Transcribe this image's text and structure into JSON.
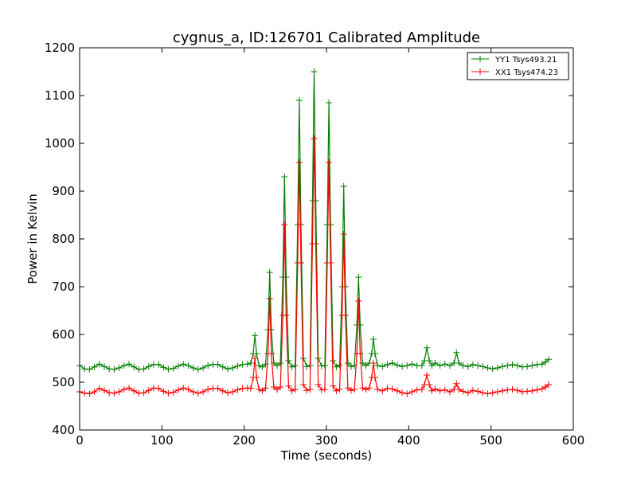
{
  "chart_data": {
    "type": "line",
    "title": "cygnus_a, ID:126701 Calibrated Amplitude",
    "xlabel": "Time (seconds)",
    "ylabel": "Power in Kelvin",
    "xlim": [
      0,
      600
    ],
    "ylim": [
      400,
      1200
    ],
    "xticks": [
      "0",
      "100",
      "200",
      "300",
      "400",
      "500",
      "600"
    ],
    "yticks": [
      "400",
      "500",
      "600",
      "700",
      "800",
      "900",
      "1000",
      "1100",
      "1200"
    ],
    "grid": false,
    "legend_position": "top-right",
    "series": [
      {
        "name": "YY1 Tsys493.21",
        "color": "#008000",
        "marker": "plus",
        "x": [
          0,
          6,
          12,
          18,
          24,
          30,
          36,
          42,
          48,
          54,
          60,
          66,
          72,
          78,
          84,
          90,
          96,
          102,
          108,
          114,
          120,
          126,
          132,
          138,
          144,
          150,
          156,
          162,
          168,
          174,
          180,
          186,
          192,
          198,
          204,
          208,
          211,
          213,
          215,
          218,
          222,
          226,
          229,
          231,
          233,
          236,
          240,
          244,
          247,
          249,
          251,
          254,
          258,
          262,
          265,
          267,
          269,
          272,
          276,
          280,
          283,
          285,
          287,
          290,
          294,
          298,
          301,
          303,
          305,
          308,
          312,
          316,
          319,
          321,
          323,
          326,
          330,
          334,
          337,
          339,
          341,
          344,
          348,
          352,
          355,
          357,
          359,
          362,
          368,
          374,
          380,
          386,
          392,
          398,
          404,
          410,
          416,
          419,
          422,
          425,
          428,
          432,
          438,
          444,
          450,
          455,
          458,
          461,
          466,
          472,
          478,
          484,
          490,
          496,
          502,
          508,
          514,
          520,
          526,
          532,
          538,
          544,
          550,
          556,
          562,
          566,
          570
        ],
        "values": [
          535,
          528,
          527,
          532,
          538,
          533,
          528,
          527,
          530,
          535,
          538,
          532,
          527,
          528,
          533,
          537,
          537,
          531,
          527,
          529,
          534,
          538,
          535,
          530,
          527,
          530,
          535,
          537,
          537,
          532,
          528,
          530,
          534,
          537,
          538,
          540,
          560,
          598,
          560,
          535,
          532,
          538,
          610,
          730,
          610,
          540,
          535,
          540,
          720,
          930,
          720,
          545,
          532,
          535,
          830,
          1090,
          830,
          550,
          533,
          535,
          880,
          1150,
          880,
          550,
          534,
          535,
          830,
          1085,
          830,
          545,
          532,
          536,
          700,
          910,
          700,
          540,
          533,
          535,
          620,
          720,
          620,
          540,
          535,
          540,
          560,
          590,
          560,
          535,
          533,
          537,
          540,
          536,
          533,
          535,
          538,
          535,
          535,
          545,
          572,
          545,
          535,
          540,
          535,
          538,
          535,
          540,
          562,
          540,
          535,
          533,
          537,
          535,
          533,
          530,
          528,
          530,
          533,
          535,
          537,
          535,
          532,
          533,
          535,
          537,
          538,
          542,
          548
        ]
      },
      {
        "name": "XX1 Tsys474.23",
        "color": "#ff0000",
        "marker": "plus",
        "x": [
          0,
          6,
          12,
          18,
          24,
          30,
          36,
          42,
          48,
          54,
          60,
          66,
          72,
          78,
          84,
          90,
          96,
          102,
          108,
          114,
          120,
          126,
          132,
          138,
          144,
          150,
          156,
          162,
          168,
          174,
          180,
          186,
          192,
          198,
          204,
          208,
          211,
          213,
          215,
          218,
          222,
          226,
          229,
          231,
          233,
          236,
          240,
          244,
          247,
          249,
          251,
          254,
          258,
          262,
          265,
          267,
          269,
          272,
          276,
          280,
          283,
          285,
          287,
          290,
          294,
          298,
          301,
          303,
          305,
          308,
          312,
          316,
          319,
          321,
          323,
          326,
          330,
          334,
          337,
          339,
          341,
          344,
          348,
          352,
          355,
          357,
          359,
          362,
          368,
          374,
          380,
          386,
          392,
          398,
          404,
          410,
          416,
          419,
          422,
          425,
          428,
          432,
          438,
          444,
          450,
          455,
          458,
          461,
          466,
          472,
          478,
          484,
          490,
          496,
          502,
          508,
          514,
          520,
          526,
          532,
          538,
          544,
          550,
          556,
          562,
          566,
          570
        ],
        "values": [
          480,
          477,
          476,
          480,
          487,
          483,
          478,
          477,
          480,
          485,
          488,
          482,
          477,
          478,
          483,
          488,
          487,
          481,
          477,
          479,
          484,
          488,
          485,
          480,
          477,
          480,
          485,
          487,
          487,
          482,
          478,
          480,
          484,
          487,
          488,
          487,
          510,
          550,
          510,
          485,
          482,
          488,
          560,
          675,
          560,
          490,
          485,
          490,
          640,
          830,
          640,
          492,
          482,
          485,
          750,
          960,
          750,
          495,
          483,
          485,
          790,
          1010,
          790,
          495,
          484,
          485,
          750,
          960,
          750,
          492,
          482,
          485,
          640,
          810,
          640,
          488,
          483,
          485,
          560,
          670,
          560,
          488,
          485,
          488,
          510,
          540,
          510,
          485,
          482,
          487,
          486,
          482,
          478,
          476,
          480,
          484,
          485,
          495,
          515,
          495,
          482,
          486,
          482,
          484,
          480,
          485,
          497,
          485,
          481,
          478,
          483,
          481,
          478,
          476,
          478,
          480,
          482,
          484,
          485,
          483,
          480,
          481,
          482,
          484,
          486,
          490,
          495
        ]
      }
    ]
  }
}
